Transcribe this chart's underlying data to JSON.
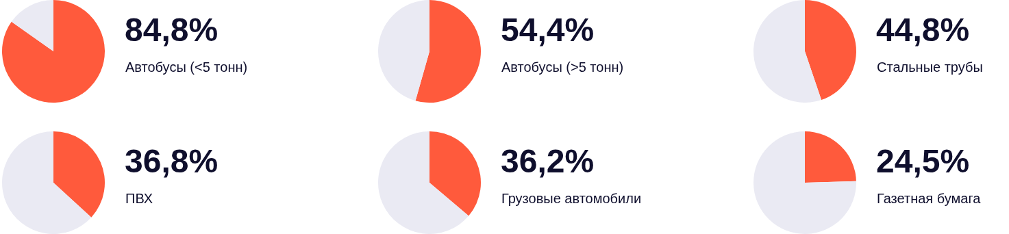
{
  "chart_data": [
    {
      "type": "pie",
      "categories": [
        "Автобусы (<5 тонн)",
        null
      ],
      "values": [
        84.8,
        15.2
      ],
      "colors": [
        "#ff5a3c",
        "#eaeaf3"
      ],
      "value_labels": [
        "84,8%",
        null
      ],
      "legend": false
    },
    {
      "type": "pie",
      "categories": [
        "Автобусы (>5 тонн)",
        null
      ],
      "values": [
        54.4,
        45.6
      ],
      "colors": [
        "#ff5a3c",
        "#eaeaf3"
      ],
      "value_labels": [
        "54,4%",
        null
      ],
      "legend": false
    },
    {
      "type": "pie",
      "categories": [
        "Стальные трубы",
        null
      ],
      "values": [
        44.8,
        55.2
      ],
      "colors": [
        "#ff5a3c",
        "#eaeaf3"
      ],
      "value_labels": [
        "44,8%",
        null
      ],
      "legend": false
    },
    {
      "type": "pie",
      "categories": [
        "ПВХ",
        null
      ],
      "values": [
        36.8,
        63.2
      ],
      "colors": [
        "#ff5a3c",
        "#eaeaf3"
      ],
      "value_labels": [
        "36,8%",
        null
      ],
      "legend": false
    },
    {
      "type": "pie",
      "categories": [
        "Грузовые автомобили",
        null
      ],
      "values": [
        36.2,
        63.8
      ],
      "colors": [
        "#ff5a3c",
        "#eaeaf3"
      ],
      "value_labels": [
        "36,2%",
        null
      ],
      "legend": false
    },
    {
      "type": "pie",
      "categories": [
        "Газетная бумага",
        null
      ],
      "values": [
        24.5,
        75.5
      ],
      "colors": [
        "#ff5a3c",
        "#eaeaf3"
      ],
      "value_labels": [
        "24,5%",
        null
      ],
      "legend": false
    }
  ]
}
